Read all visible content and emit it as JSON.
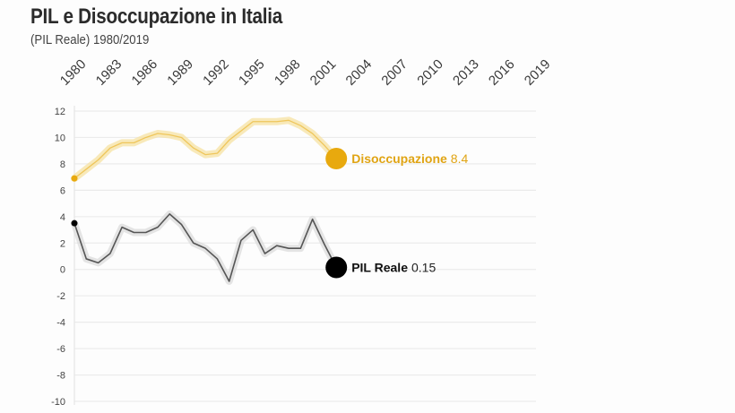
{
  "chart_data": {
    "type": "line",
    "title": "PIL e Disoccupazione in Italia",
    "subtitle": "(PIL Reale) 1980/2019",
    "xlabel": "",
    "ylabel": "",
    "xlim": [
      1980,
      2019
    ],
    "ylim": [
      -10,
      12
    ],
    "x_ticks": [
      "1980",
      "1983",
      "1986",
      "1989",
      "1992",
      "1995",
      "1998",
      "2001",
      "2004",
      "2007",
      "2010",
      "2013",
      "2016",
      "2019"
    ],
    "y_ticks": [
      "12",
      "10",
      "8",
      "6",
      "4",
      "2",
      "0",
      "-2",
      "-4",
      "-6",
      "-8",
      "-10"
    ],
    "grid": true,
    "x": [
      1980,
      1981,
      1982,
      1983,
      1984,
      1985,
      1986,
      1987,
      1988,
      1989,
      1990,
      1991,
      1992,
      1993,
      1994,
      1995,
      1996,
      1997,
      1998,
      1999,
      2000,
      2001,
      2002
    ],
    "series": [
      {
        "name": "Disoccupazione",
        "color": "#e8a90e",
        "glow": "#f6e3a8",
        "end_label_name": "Disoccupazione",
        "end_label_value": "8.4",
        "values": [
          6.9,
          7.6,
          8.3,
          9.2,
          9.6,
          9.6,
          10.0,
          10.3,
          10.2,
          10.0,
          9.2,
          8.7,
          8.8,
          9.8,
          10.5,
          11.2,
          11.2,
          11.2,
          11.3,
          10.9,
          10.3,
          9.4,
          8.4
        ]
      },
      {
        "name": "PIL Reale",
        "color": "#000000",
        "line_color": "#555555",
        "glow": "#dddddd",
        "end_label_name": "PIL Reale",
        "end_label_value": "0.15",
        "values": [
          3.5,
          0.8,
          0.5,
          1.2,
          3.2,
          2.8,
          2.8,
          3.2,
          4.2,
          3.4,
          2.0,
          1.6,
          0.8,
          -0.9,
          2.2,
          3.0,
          1.2,
          1.8,
          1.6,
          1.6,
          3.8,
          1.9,
          0.15
        ]
      }
    ]
  }
}
